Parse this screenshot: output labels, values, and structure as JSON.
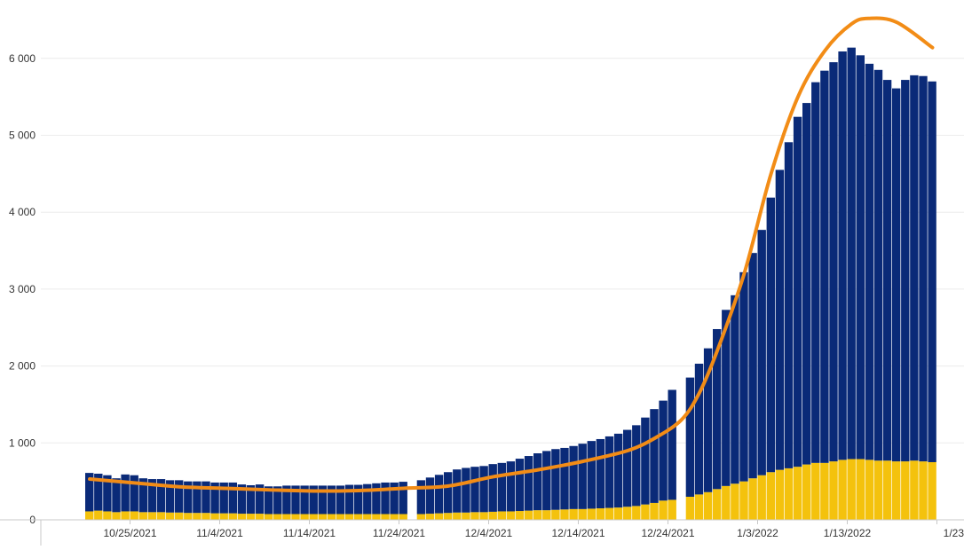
{
  "chart_data": {
    "type": "bar",
    "stacked": true,
    "title": "",
    "xlabel": "",
    "ylabel": "",
    "ylim": [
      0,
      6600
    ],
    "grid": true,
    "colors": {
      "bottom_series": "#f4c20d",
      "top_series": "#0a2a78",
      "trend": "#f28c16",
      "grid": "#ececec",
      "axis": "#c8c8c8"
    },
    "y_ticks": [
      {
        "value": 0,
        "label": "0"
      },
      {
        "value": 1000,
        "label": "1 000"
      },
      {
        "value": 2000,
        "label": "2 000"
      },
      {
        "value": 3000,
        "label": "3 000"
      },
      {
        "value": 4000,
        "label": "4 000"
      },
      {
        "value": 5000,
        "label": "5 000"
      },
      {
        "value": 6000,
        "label": "6 000"
      }
    ],
    "x_ticks": [
      {
        "index": 5,
        "label": "10/25/2021"
      },
      {
        "index": 15,
        "label": "11/4/2021"
      },
      {
        "index": 25,
        "label": "11/14/2021"
      },
      {
        "index": 35,
        "label": "11/24/2021"
      },
      {
        "index": 45,
        "label": "12/4/2021"
      },
      {
        "index": 55,
        "label": "12/14/2021"
      },
      {
        "index": 65,
        "label": "12/24/2021"
      },
      {
        "index": 75,
        "label": "1/3/2022"
      },
      {
        "index": 85,
        "label": "1/13/2022"
      },
      {
        "index": 95,
        "label": "1/23"
      }
    ],
    "categories": [
      "10/20/2021",
      "10/21/2021",
      "10/22/2021",
      "10/23/2021",
      "10/24/2021",
      "10/25/2021",
      "10/26/2021",
      "10/27/2021",
      "10/28/2021",
      "10/29/2021",
      "10/30/2021",
      "10/31/2021",
      "11/1/2021",
      "11/2/2021",
      "11/3/2021",
      "11/4/2021",
      "11/5/2021",
      "11/6/2021",
      "11/7/2021",
      "11/8/2021",
      "11/9/2021",
      "11/10/2021",
      "11/11/2021",
      "11/12/2021",
      "11/13/2021",
      "11/14/2021",
      "11/15/2021",
      "11/16/2021",
      "11/17/2021",
      "11/18/2021",
      "11/19/2021",
      "11/20/2021",
      "11/21/2021",
      "11/22/2021",
      "11/23/2021",
      "11/24/2021",
      "11/25/2021",
      "11/26/2021",
      "11/27/2021",
      "11/28/2021",
      "11/29/2021",
      "11/30/2021",
      "12/1/2021",
      "12/2/2021",
      "12/3/2021",
      "12/4/2021",
      "12/5/2021",
      "12/6/2021",
      "12/7/2021",
      "12/8/2021",
      "12/9/2021",
      "12/10/2021",
      "12/11/2021",
      "12/12/2021",
      "12/13/2021",
      "12/14/2021",
      "12/15/2021",
      "12/16/2021",
      "12/17/2021",
      "12/18/2021",
      "12/19/2021",
      "12/20/2021",
      "12/21/2021",
      "12/22/2021",
      "12/23/2021",
      "12/24/2021",
      "12/25/2021",
      "12/26/2021",
      "12/27/2021",
      "12/28/2021",
      "12/29/2021",
      "12/30/2021",
      "12/31/2021",
      "1/1/2022",
      "1/2/2022",
      "1/3/2022",
      "1/4/2022",
      "1/5/2022",
      "1/6/2022",
      "1/7/2022",
      "1/8/2022",
      "1/9/2022",
      "1/10/2022",
      "1/11/2022",
      "1/12/2022",
      "1/13/2022",
      "1/14/2022",
      "1/15/2022",
      "1/16/2022",
      "1/17/2022",
      "1/18/2022",
      "1/19/2022",
      "1/20/2022",
      "1/21/2022",
      "1/22/2022"
    ],
    "series": [
      {
        "values": [
          110,
          120,
          110,
          100,
          110,
          110,
          100,
          100,
          100,
          95,
          95,
          90,
          90,
          90,
          85,
          85,
          85,
          80,
          80,
          80,
          75,
          75,
          75,
          75,
          75,
          75,
          75,
          75,
          75,
          75,
          75,
          75,
          75,
          75,
          75,
          75,
          null,
          75,
          80,
          85,
          90,
          95,
          95,
          100,
          100,
          105,
          110,
          110,
          115,
          120,
          125,
          125,
          130,
          135,
          140,
          140,
          145,
          150,
          155,
          160,
          170,
          180,
          200,
          220,
          250,
          260,
          null,
          300,
          330,
          360,
          400,
          440,
          470,
          500,
          540,
          580,
          620,
          650,
          670,
          690,
          720,
          740,
          740,
          760,
          780,
          790,
          790,
          780,
          770,
          770,
          760,
          760,
          770,
          760,
          750
        ]
      },
      {
        "values": [
          500,
          480,
          470,
          440,
          480,
          470,
          440,
          430,
          430,
          420,
          420,
          410,
          410,
          410,
          400,
          400,
          400,
          380,
          370,
          380,
          360,
          360,
          370,
          370,
          370,
          370,
          370,
          370,
          370,
          380,
          380,
          390,
          400,
          410,
          410,
          420,
          null,
          440,
          470,
          500,
          530,
          560,
          580,
          590,
          600,
          620,
          630,
          650,
          680,
          710,
          740,
          770,
          790,
          800,
          820,
          850,
          880,
          900,
          930,
          960,
          1000,
          1050,
          1130,
          1220,
          1300,
          1430,
          null,
          1550,
          1700,
          1870,
          2080,
          2290,
          2450,
          2720,
          2930,
          3190,
          3570,
          3900,
          4240,
          4550,
          4700,
          4950,
          5100,
          5190,
          5310,
          5350,
          5250,
          5150,
          5080,
          4950,
          4850,
          4960,
          5010,
          5010,
          4950
        ]
      }
    ],
    "trend": [
      [
        0,
        530
      ],
      [
        5,
        480
      ],
      [
        10,
        430
      ],
      [
        15,
        410
      ],
      [
        20,
        390
      ],
      [
        25,
        375
      ],
      [
        30,
        380
      ],
      [
        35,
        410
      ],
      [
        40,
        440
      ],
      [
        45,
        560
      ],
      [
        50,
        650
      ],
      [
        55,
        760
      ],
      [
        60,
        900
      ],
      [
        63,
        1060
      ],
      [
        66,
        1300
      ],
      [
        68,
        1650
      ],
      [
        70,
        2200
      ],
      [
        73,
        3200
      ],
      [
        76,
        4500
      ],
      [
        79,
        5500
      ],
      [
        82,
        6100
      ],
      [
        85,
        6450
      ],
      [
        87,
        6520
      ],
      [
        90,
        6470
      ],
      [
        94,
        6140
      ]
    ]
  }
}
